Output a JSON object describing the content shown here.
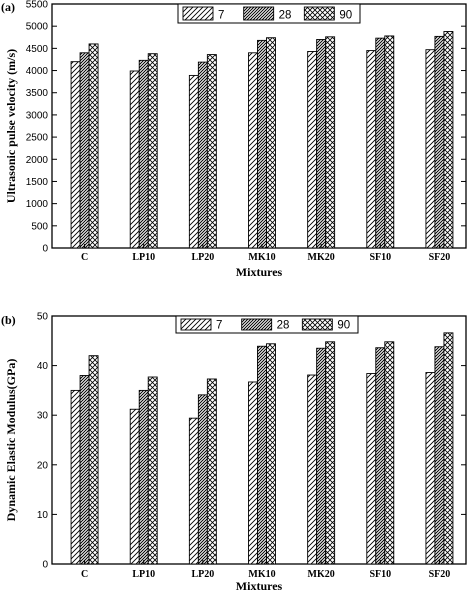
{
  "chart_data": [
    {
      "type": "bar",
      "panel_label": "(a)",
      "categories": [
        "C",
        "LP10",
        "LP20",
        "MK10",
        "MK20",
        "SF10",
        "SF20"
      ],
      "series": [
        {
          "name": "7",
          "values": [
            4200,
            3990,
            3890,
            4400,
            4430,
            4450,
            4470
          ]
        },
        {
          "name": "28",
          "values": [
            4400,
            4230,
            4190,
            4680,
            4700,
            4730,
            4770
          ]
        },
        {
          "name": "90",
          "values": [
            4600,
            4380,
            4360,
            4740,
            4760,
            4780,
            4880
          ]
        }
      ],
      "xlabel": "Mixtures",
      "ylabel": "Ultrasonic pulse velocity (m/s)",
      "ylim": [
        0,
        5500
      ],
      "yticks": [
        0,
        500,
        1000,
        1500,
        2000,
        2500,
        3000,
        3500,
        4000,
        4500,
        5000,
        5500
      ],
      "legend_position": "top-right",
      "grid": false
    },
    {
      "type": "bar",
      "panel_label": "(b)",
      "categories": [
        "C",
        "LP10",
        "LP20",
        "MK10",
        "MK20",
        "SF10",
        "SF20"
      ],
      "series": [
        {
          "name": "7",
          "values": [
            35.0,
            31.2,
            29.4,
            36.7,
            38.1,
            38.4,
            38.6
          ]
        },
        {
          "name": "28",
          "values": [
            38.0,
            35.0,
            34.1,
            43.9,
            43.5,
            43.6,
            43.8
          ]
        },
        {
          "name": "90",
          "values": [
            42.0,
            37.7,
            37.3,
            44.4,
            44.8,
            44.8,
            46.6
          ]
        }
      ],
      "xlabel": "Mixtures",
      "ylabel": "Dynamic Elastic Modulus(GPa)",
      "ylim": [
        0,
        50
      ],
      "yticks": [
        0,
        10,
        20,
        30,
        40,
        50
      ],
      "legend_position": "top-right",
      "grid": false
    }
  ]
}
